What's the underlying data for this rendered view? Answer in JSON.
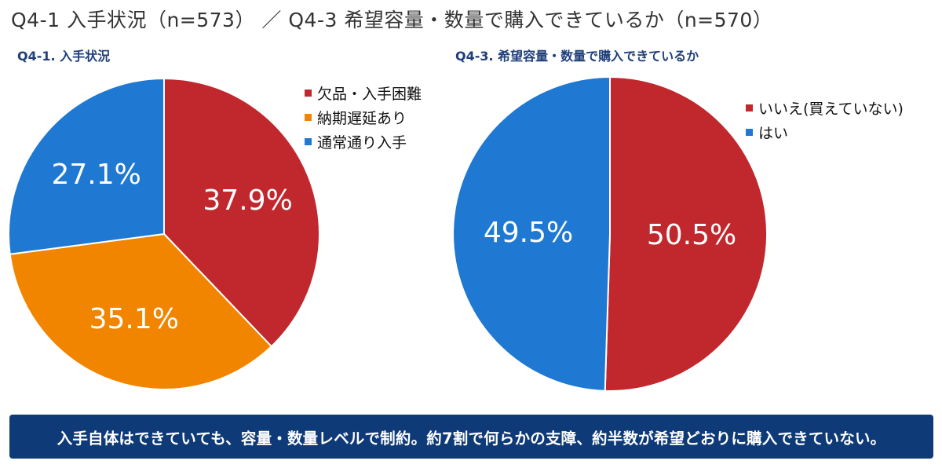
{
  "page": {
    "title": "Q4-1 入手状況（n=573） ／ Q4-3 希望容量・数量で購入できているか（n=570）",
    "banner": "入手自体はできていても、容量・数量レベルで制約。約7割で何らかの支障、約半数が希望どおりに購入できていない。"
  },
  "chart_data": [
    {
      "type": "pie",
      "title": "Q4-1. 入手状況",
      "slices": [
        {
          "label": "欠品・入手困難",
          "value": 37.9,
          "display": "37.9%",
          "color": "#c0282d"
        },
        {
          "label": "納期遅延あり",
          "value": 35.1,
          "display": "35.1%",
          "color": "#f28500"
        },
        {
          "label": "通常通り入手",
          "value": 27.1,
          "display": "27.1%",
          "color": "#1f78d1"
        }
      ],
      "legend_position": "top-right"
    },
    {
      "type": "pie",
      "title": "Q4-3. 希望容量・数量で購入できているか",
      "slices": [
        {
          "label": "いいえ(買えていない)",
          "value": 50.5,
          "display": "50.5%",
          "color": "#c0282d"
        },
        {
          "label": "はい",
          "value": 49.5,
          "display": "49.5%",
          "color": "#1f78d1"
        }
      ],
      "legend_position": "top-right"
    }
  ]
}
